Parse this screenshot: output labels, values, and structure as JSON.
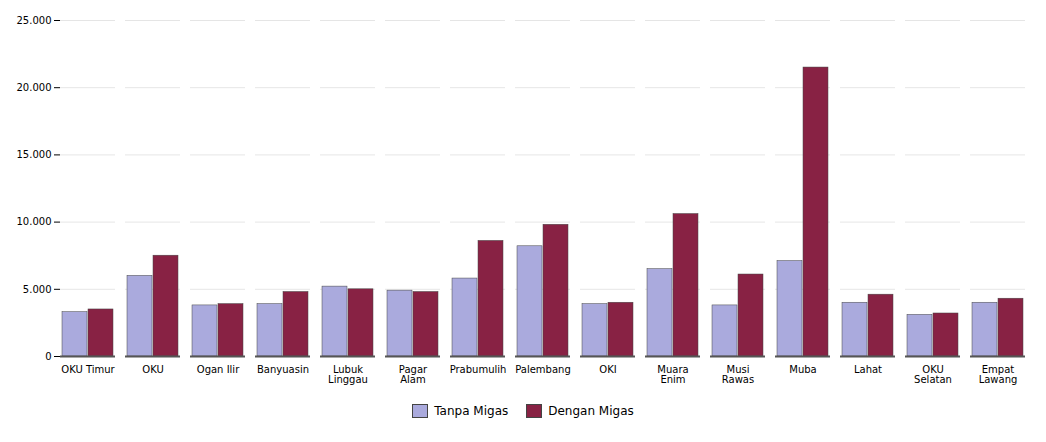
{
  "chart_data": {
    "type": "bar",
    "categories": [
      "OKU Timur",
      "OKU",
      "Ogan Ilir",
      "Banyuasin",
      "Lubuk\nLinggau",
      "Pagar\nAlam",
      "Prabumulih",
      "Palembang",
      "OKI",
      "Muara\nEnim",
      "Musi\nRawas",
      "Muba",
      "Lahat",
      "OKU\nSelatan",
      "Empat\nLawang"
    ],
    "series": [
      {
        "name": "Tanpa Migas",
        "color": "#aaaadd",
        "values": [
          3300,
          6000,
          3800,
          3900,
          5200,
          4900,
          5800,
          8200,
          3900,
          6500,
          3800,
          7100,
          4000,
          3100,
          4000
        ]
      },
      {
        "name": "Dengan Migas",
        "color": "#882244",
        "values": [
          3500,
          7500,
          3900,
          4800,
          5000,
          4800,
          8600,
          9800,
          4000,
          10600,
          6100,
          21500,
          4600,
          3200,
          4300
        ]
      }
    ],
    "ylim": [
      0,
      25000
    ],
    "yticks": [
      0,
      {
        "value": 5000,
        "label": "5.000"
      },
      {
        "value": 10000,
        "label": "10.000"
      },
      {
        "value": 15000,
        "label": "15.000"
      },
      {
        "value": 20000,
        "label": "20.000"
      },
      {
        "value": 25000,
        "label": "25.000"
      }
    ],
    "grid": true,
    "legend": "bottom"
  }
}
